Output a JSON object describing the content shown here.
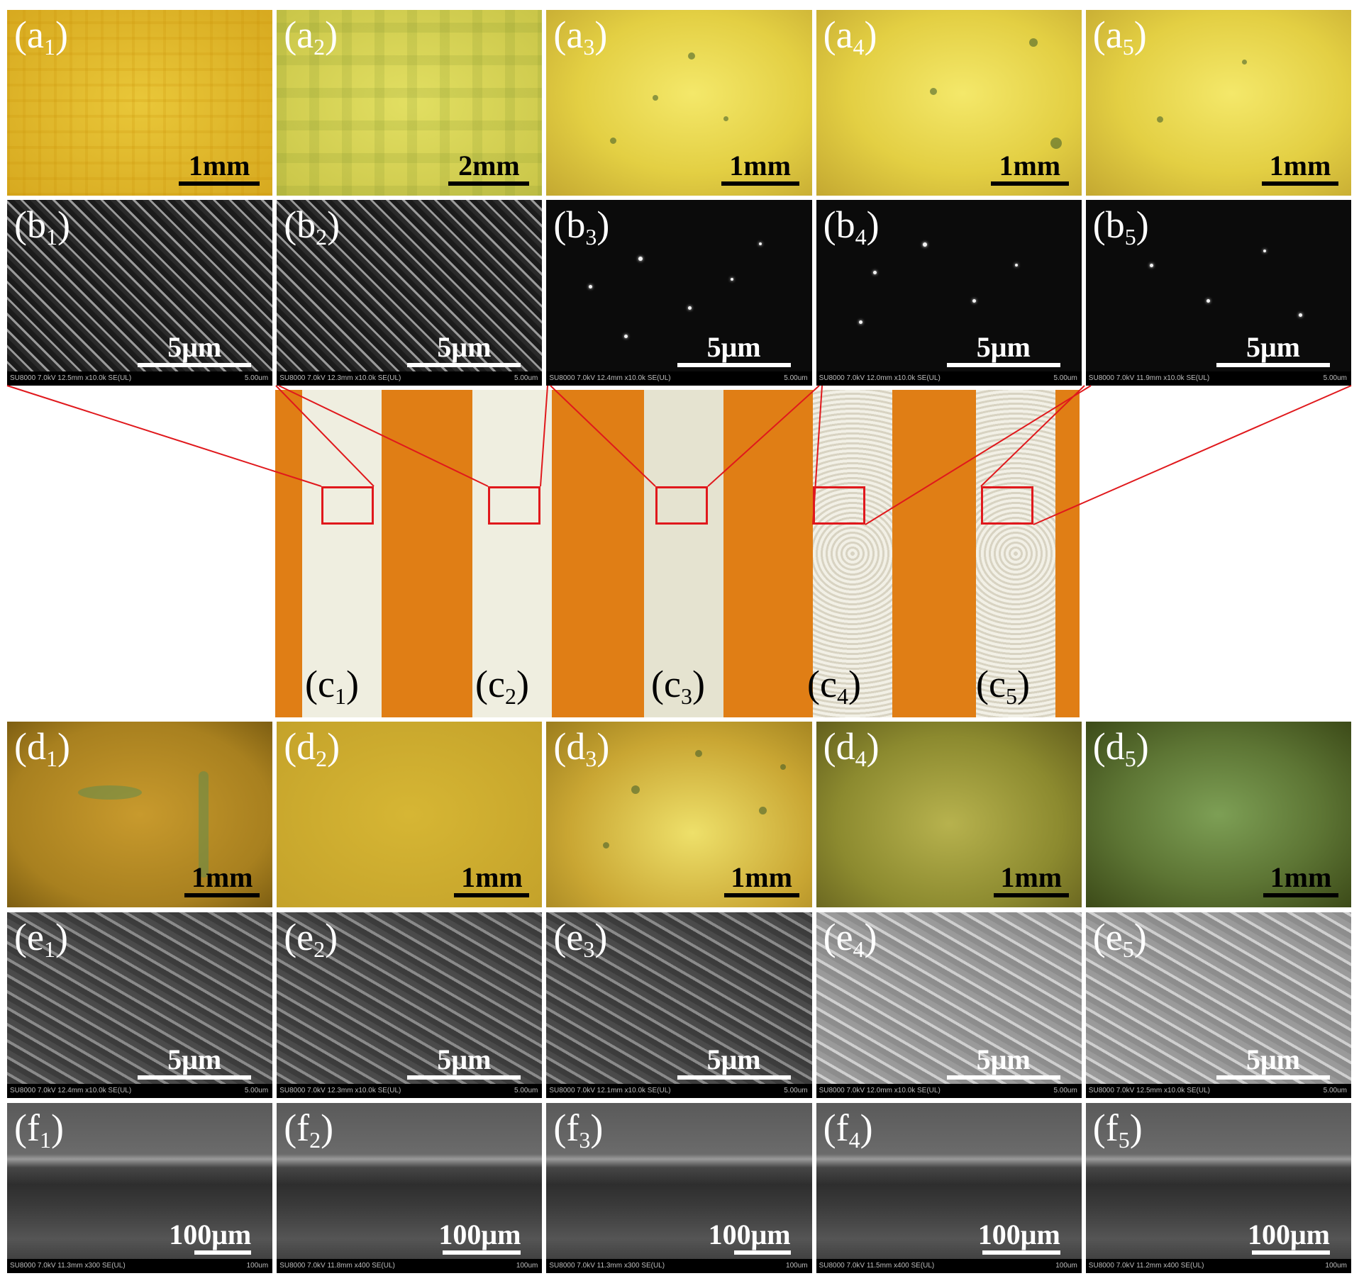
{
  "row_a": [
    {
      "label_main": "(a",
      "label_sub": "1",
      "label_end": ")",
      "scale": "1mm",
      "scale_width": 114
    },
    {
      "label_main": "(a",
      "label_sub": "2",
      "label_end": ")",
      "scale": "2mm",
      "scale_width": 114
    },
    {
      "label_main": "(a",
      "label_sub": "3",
      "label_end": ")",
      "scale": "1mm",
      "scale_width": 110
    },
    {
      "label_main": "(a",
      "label_sub": "4",
      "label_end": ")",
      "scale": "1mm",
      "scale_width": 110
    },
    {
      "label_main": "(a",
      "label_sub": "5",
      "label_end": ")",
      "scale": "1mm",
      "scale_width": 108
    }
  ],
  "row_b": [
    {
      "label_main": "(b",
      "label_sub": "1",
      "label_end": ")",
      "scale": "5μm",
      "info": "SU8000 7.0kV 12.5mm x10.0k SE(UL)",
      "info_right": "5.00um"
    },
    {
      "label_main": "(b",
      "label_sub": "2",
      "label_end": ")",
      "scale": "5μm",
      "info": "SU8000 7.0kV 12.3mm x10.0k SE(UL)",
      "info_right": "5.00um"
    },
    {
      "label_main": "(b",
      "label_sub": "3",
      "label_end": ")",
      "scale": "5μm",
      "info": "SU8000 7.0kV 12.4mm x10.0k SE(UL)",
      "info_right": "5.00um"
    },
    {
      "label_main": "(b",
      "label_sub": "4",
      "label_end": ")",
      "scale": "5μm",
      "info": "SU8000 7.0kV 12.0mm x10.0k SE(UL)",
      "info_right": "5.00um"
    },
    {
      "label_main": "(b",
      "label_sub": "5",
      "label_end": ")",
      "scale": "5μm",
      "info": "SU8000 7.0kV 11.9mm x10.0k SE(UL)",
      "info_right": "5.00um"
    }
  ],
  "row_c": [
    {
      "label_main": "(c",
      "label_sub": "1",
      "label_end": ")"
    },
    {
      "label_main": "(c",
      "label_sub": "2",
      "label_end": ")"
    },
    {
      "label_main": "(c",
      "label_sub": "3",
      "label_end": ")"
    },
    {
      "label_main": "(c",
      "label_sub": "4",
      "label_end": ")"
    },
    {
      "label_main": "(c",
      "label_sub": "5",
      "label_end": ")"
    }
  ],
  "row_d": [
    {
      "label_main": "(d",
      "label_sub": "1",
      "label_end": ")",
      "scale": "1mm"
    },
    {
      "label_main": "(d",
      "label_sub": "2",
      "label_end": ")",
      "scale": "1mm"
    },
    {
      "label_main": "(d",
      "label_sub": "3",
      "label_end": ")",
      "scale": "1mm"
    },
    {
      "label_main": "(d",
      "label_sub": "4",
      "label_end": ")",
      "scale": "1mm"
    },
    {
      "label_main": "(d",
      "label_sub": "5",
      "label_end": ")",
      "scale": "1mm"
    }
  ],
  "row_e": [
    {
      "label_main": "(e",
      "label_sub": "1",
      "label_end": ")",
      "scale": "5μm",
      "info": "SU8000 7.0kV 12.4mm x10.0k SE(UL)",
      "info_right": "5.00um"
    },
    {
      "label_main": "(e",
      "label_sub": "2",
      "label_end": ")",
      "scale": "5μm",
      "info": "SU8000 7.0kV 12.3mm x10.0k SE(UL)",
      "info_right": "5.00um"
    },
    {
      "label_main": "(e",
      "label_sub": "3",
      "label_end": ")",
      "scale": "5μm",
      "info": "SU8000 7.0kV 12.1mm x10.0k SE(UL)",
      "info_right": "5.00um"
    },
    {
      "label_main": "(e",
      "label_sub": "4",
      "label_end": ")",
      "scale": "5μm",
      "info": "SU8000 7.0kV 12.0mm x10.0k SE(UL)",
      "info_right": "5.00um"
    },
    {
      "label_main": "(e",
      "label_sub": "5",
      "label_end": ")",
      "scale": "5μm",
      "info": "SU8000 7.0kV 12.5mm x10.0k SE(UL)",
      "info_right": "5.00um"
    }
  ],
  "row_f": [
    {
      "label_main": "(f",
      "label_sub": "1",
      "label_end": ")",
      "scale": "100μm",
      "info": "SU8000 7.0kV 11.3mm x300 SE(UL)",
      "info_right": "100um"
    },
    {
      "label_main": "(f",
      "label_sub": "2",
      "label_end": ")",
      "scale": "100μm",
      "info": "SU8000 7.0kV 11.8mm x400 SE(UL)",
      "info_right": "100um"
    },
    {
      "label_main": "(f",
      "label_sub": "3",
      "label_end": ")",
      "scale": "100μm",
      "info": "SU8000 7.0kV 11.3mm x300 SE(UL)",
      "info_right": "100um"
    },
    {
      "label_main": "(f",
      "label_sub": "4",
      "label_end": ")",
      "scale": "100μm",
      "info": "SU8000 7.0kV 11.5mm x400 SE(UL)",
      "info_right": "100um"
    },
    {
      "label_main": "(f",
      "label_sub": "5",
      "label_end": ")",
      "scale": "100μm",
      "info": "SU8000 7.0kV 11.2mm x400 SE(UL)",
      "info_right": "100um"
    }
  ],
  "colors": {
    "connector_red": "#e0181c",
    "substrate_orange": "#e07e15",
    "strip_white": "#efeee0"
  }
}
